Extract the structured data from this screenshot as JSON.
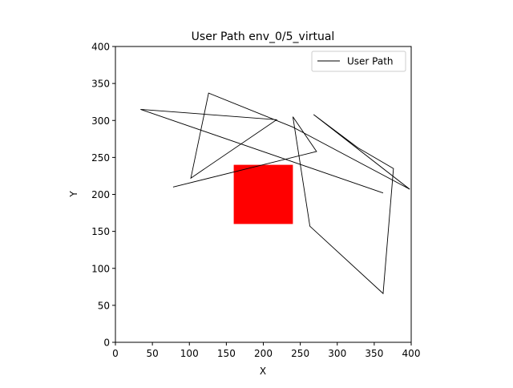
{
  "chart_data": {
    "type": "line",
    "title": "User Path env_0/5_virtual",
    "xlabel": "X",
    "ylabel": "Y",
    "xlim": [
      0,
      400
    ],
    "ylim": [
      0,
      400
    ],
    "xticks": [
      0,
      50,
      100,
      150,
      200,
      250,
      300,
      350,
      400
    ],
    "yticks": [
      0,
      50,
      100,
      150,
      200,
      250,
      300,
      350,
      400
    ],
    "grid": false,
    "legend_position": "top-right",
    "series": [
      {
        "name": "User Path",
        "color": "#000000",
        "points": [
          [
            362,
            202
          ],
          [
            34,
            315
          ],
          [
            218,
            301
          ],
          [
            102,
            222
          ],
          [
            126,
            337
          ],
          [
            240,
            291
          ],
          [
            398,
            207
          ],
          [
            268,
            308
          ],
          [
            328,
            263
          ],
          [
            376,
            235
          ],
          [
            362,
            66
          ],
          [
            263,
            157
          ],
          [
            240,
            305
          ],
          [
            272,
            258
          ],
          [
            78,
            210
          ]
        ]
      }
    ],
    "shapes": [
      {
        "type": "rect",
        "x": [
          160,
          240
        ],
        "y": [
          160,
          240
        ],
        "color": "#ff0000"
      }
    ]
  }
}
